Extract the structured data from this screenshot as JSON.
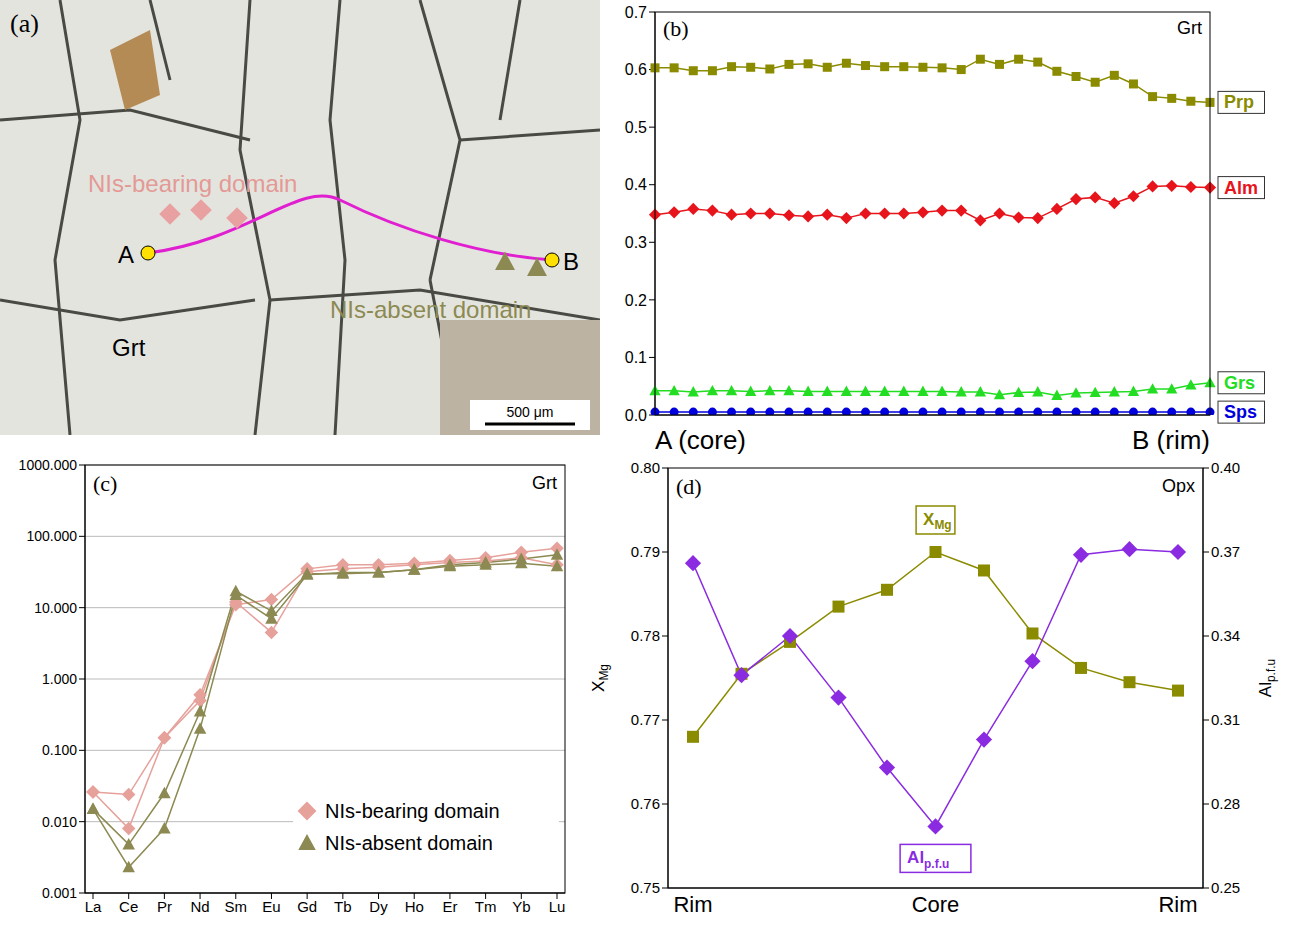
{
  "panel_a": {
    "panel": "(a)",
    "mineral": "Grt",
    "labels": [
      "NIs-bearing domain",
      "NIs-absent domain"
    ],
    "points": [
      "A",
      "B"
    ],
    "scale_bar": "500 μm"
  },
  "chart_data": [
    {
      "panel": "(b)",
      "type": "line",
      "title": "Grt",
      "categories": [
        "A (core)",
        null,
        null,
        null,
        null,
        null,
        null,
        null,
        null,
        null,
        null,
        null,
        null,
        null,
        null,
        null,
        null,
        null,
        null,
        null,
        null,
        null,
        null,
        null,
        null,
        null,
        null,
        null,
        null,
        "B (rim)"
      ],
      "ylim": [
        0,
        0.7
      ],
      "yticks": [
        {
          "value": 0,
          "label": "0.0"
        },
        0.1,
        0.2,
        0.3,
        0.4,
        0.5,
        0.6,
        0.7
      ],
      "series": [
        {
          "name": "Prp",
          "color": "#8b8b00",
          "marker": "square",
          "values": [
            0.603,
            0.603,
            0.598,
            0.598,
            0.605,
            0.604,
            0.601,
            0.609,
            0.61,
            0.604,
            0.611,
            0.607,
            0.605,
            0.605,
            0.604,
            0.603,
            0.6,
            0.618,
            0.609,
            0.618,
            0.613,
            0.597,
            0.588,
            0.578,
            0.59,
            0.575,
            0.553,
            0.55,
            0.545,
            0.543
          ]
        },
        {
          "name": "Alm",
          "color": "#e8141c",
          "marker": "diamond",
          "values": [
            0.348,
            0.352,
            0.358,
            0.355,
            0.348,
            0.35,
            0.35,
            0.347,
            0.345,
            0.348,
            0.342,
            0.35,
            0.35,
            0.35,
            0.352,
            0.355,
            0.355,
            0.338,
            0.35,
            0.343,
            0.342,
            0.358,
            0.375,
            0.378,
            0.368,
            0.38,
            0.397,
            0.398,
            0.396,
            0.395
          ]
        },
        {
          "name": "Grs",
          "color": "#22dd22",
          "marker": "triangle",
          "values": [
            0.042,
            0.042,
            0.04,
            0.042,
            0.042,
            0.041,
            0.042,
            0.042,
            0.041,
            0.041,
            0.041,
            0.041,
            0.041,
            0.041,
            0.041,
            0.041,
            0.04,
            0.04,
            0.035,
            0.039,
            0.04,
            0.034,
            0.038,
            0.039,
            0.04,
            0.041,
            0.045,
            0.045,
            0.052,
            0.056
          ]
        },
        {
          "name": "Sps",
          "color": "#0000dd",
          "marker": "circle",
          "values": [
            0.005,
            0.005,
            0.005,
            0.005,
            0.005,
            0.005,
            0.005,
            0.005,
            0.005,
            0.005,
            0.005,
            0.005,
            0.005,
            0.005,
            0.005,
            0.005,
            0.005,
            0.005,
            0.005,
            0.005,
            0.005,
            0.005,
            0.005,
            0.005,
            0.005,
            0.005,
            0.005,
            0.005,
            0.005,
            0.005
          ]
        }
      ]
    },
    {
      "panel": "(c)",
      "type": "line",
      "title": "Grt",
      "log": "y",
      "grid": true,
      "legend": "lower right",
      "categories": [
        "La",
        "Ce",
        "Pr",
        "Nd",
        "Sm",
        "Eu",
        "Gd",
        "Tb",
        "Dy",
        "Ho",
        "Er",
        "Tm",
        "Yb",
        "Lu"
      ],
      "ylim": [
        0.001,
        1000
      ],
      "yticks": [
        {
          "value": 0.001,
          "label": "0.001"
        },
        {
          "value": 0.01,
          "label": "0.010"
        },
        {
          "value": 0.1,
          "label": "0.100"
        },
        {
          "value": 1,
          "label": "1.000"
        },
        {
          "value": 10,
          "label": "10.000"
        },
        {
          "value": 100,
          "label": "100.000"
        },
        {
          "value": 1000,
          "label": "1000.000"
        }
      ],
      "series": [
        {
          "name": "NIs-bearing domain",
          "color": "#e6a19b",
          "marker": "diamond",
          "values": [
            0.026,
            0.024,
            0.15,
            0.6,
            11,
            13,
            35,
            40,
            40,
            42,
            46,
            50,
            60,
            68
          ]
        },
        {
          "name": "NIs-bearing domain",
          "color": "#e6a19b",
          "marker": "diamond",
          "values": [
            0.026,
            0.008,
            0.15,
            0.5,
            12,
            4.5,
            32,
            35,
            37,
            40,
            43,
            45,
            50,
            40
          ]
        },
        {
          "name": "NIs-absent domain",
          "color": "#8c8a52",
          "marker": "triangle",
          "values": [
            0.015,
            0.0048,
            0.025,
            0.35,
            17,
            9,
            30,
            30,
            31,
            34,
            40,
            43,
            48,
            55
          ]
        },
        {
          "name": "NIs-absent domain",
          "color": "#8c8a52",
          "marker": "triangle",
          "values": [
            0.015,
            0.0023,
            0.008,
            0.2,
            15,
            7,
            29,
            31,
            31,
            34,
            38,
            40,
            42,
            38
          ]
        }
      ]
    },
    {
      "panel": "(d)",
      "type": "line",
      "title": "Opx",
      "categories": [
        "Rim",
        null,
        null,
        null,
        null,
        "Core",
        null,
        null,
        null,
        null,
        "Rim"
      ],
      "y_label": "XMg",
      "y2_label": "Alp.f.u",
      "ylim": [
        0.75,
        0.8
      ],
      "yticks": [
        0.75,
        0.76,
        0.77,
        0.78,
        0.79,
        {
          "value": 0.8,
          "label": "0.80"
        }
      ],
      "y2lim": [
        0.25,
        0.4
      ],
      "y2ticks": [
        0.25,
        0.28,
        0.31,
        0.34,
        0.37,
        {
          "value": 0.4,
          "label": "0.40"
        }
      ],
      "series": [
        {
          "name": "XMg",
          "color": "#8b8b00",
          "marker": "square",
          "values": [
            0.768,
            0.7755,
            0.7793,
            0.7835,
            0.7855,
            0.79,
            0.7878,
            0.7803,
            0.7762,
            0.7745,
            0.7735
          ]
        },
        {
          "name": "Alp.f.u",
          "color": "#8a2be2",
          "marker": "diamond",
          "axis": "y2",
          "values": [
            0.366,
            0.326,
            0.34,
            0.318,
            0.293,
            0.272,
            0.303,
            0.331,
            0.369,
            0.371,
            0.37
          ]
        }
      ]
    }
  ]
}
